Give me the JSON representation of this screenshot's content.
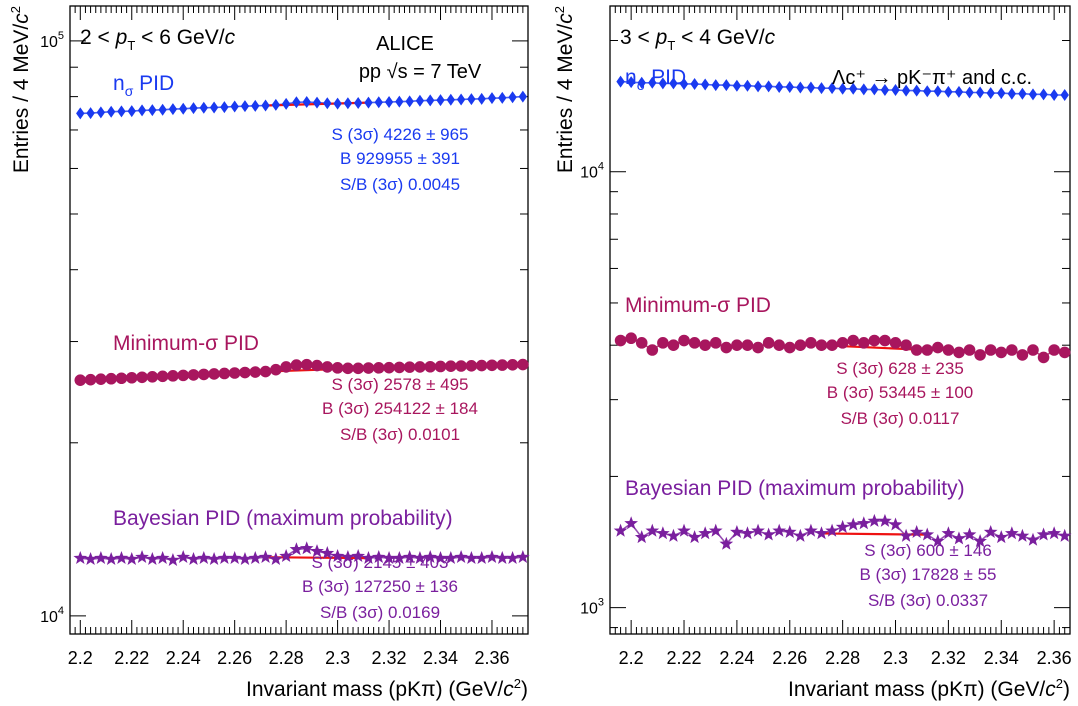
{
  "chart_data": [
    {
      "type": "scatter",
      "yscale": "log",
      "xlim": [
        2.196,
        2.374
      ],
      "ylim": [
        9300,
        115000
      ],
      "x_ticks": [
        "2.2",
        "2.22",
        "2.24",
        "2.26",
        "2.28",
        "2.3",
        "2.32",
        "2.34",
        "2.36"
      ],
      "x_tick_values": [
        2.2,
        2.22,
        2.24,
        2.26,
        2.28,
        2.3,
        2.32,
        2.34,
        2.36
      ],
      "y_labels": [
        {
          "value": 100000,
          "base": "10",
          "exp": "5"
        },
        {
          "value": 10000,
          "base": "10",
          "exp": "4"
        }
      ],
      "xlabel": "Invariant mass (pKπ) (GeV/c²)",
      "ylabel": "Entries / 4 MeV/c²",
      "header_left": "2 < pT < 6 GeV/c",
      "header_right": [
        "ALICE",
        "pp √s = 7 TeV"
      ],
      "grid": false,
      "x": [
        2.2,
        2.204,
        2.208,
        2.212,
        2.216,
        2.22,
        2.224,
        2.228,
        2.232,
        2.236,
        2.24,
        2.244,
        2.248,
        2.252,
        2.256,
        2.26,
        2.264,
        2.268,
        2.272,
        2.276,
        2.28,
        2.284,
        2.288,
        2.292,
        2.296,
        2.3,
        2.304,
        2.308,
        2.312,
        2.316,
        2.32,
        2.324,
        2.328,
        2.332,
        2.336,
        2.34,
        2.344,
        2.348,
        2.352,
        2.356,
        2.36,
        2.364,
        2.368,
        2.372
      ],
      "series": [
        {
          "name": "nσ PID",
          "marker": "diamond",
          "color": "#1a3af0",
          "values": [
            74800,
            74900,
            75100,
            75300,
            75400,
            75500,
            75700,
            75800,
            75900,
            76100,
            76200,
            76400,
            76500,
            76600,
            76700,
            76900,
            77000,
            77100,
            77200,
            77400,
            77700,
            78200,
            78300,
            78100,
            77900,
            77800,
            77900,
            78000,
            78100,
            78200,
            78300,
            78400,
            78500,
            78700,
            78800,
            78900,
            79000,
            79100,
            79200,
            79300,
            79500,
            79600,
            79800,
            80000
          ],
          "stats": [
            "S (3σ) 4226 ± 965",
            "B  929955 ± 391",
            "S/B (3σ) 0.0045"
          ]
        },
        {
          "name": "Minimum-σ PID",
          "marker": "circle",
          "color": "#a8165e",
          "values": [
            25700,
            25750,
            25800,
            25850,
            25900,
            25950,
            26000,
            26050,
            26100,
            26150,
            26200,
            26250,
            26300,
            26350,
            26400,
            26450,
            26500,
            26550,
            26600,
            26800,
            27100,
            27300,
            27350,
            27250,
            27100,
            27000,
            26950,
            26950,
            26980,
            27000,
            27020,
            27050,
            27080,
            27100,
            27120,
            27150,
            27180,
            27200,
            27220,
            27250,
            27280,
            27300,
            27330,
            27360
          ],
          "stats": [
            "S (3σ) 2578 ± 495",
            "B (3σ) 254122 ± 184",
            "S/B (3σ) 0.0101"
          ]
        },
        {
          "name": "Bayesian PID (maximum probability)",
          "marker": "star",
          "color": "#7a1f9e",
          "values": [
            12600,
            12550,
            12600,
            12550,
            12600,
            12550,
            12650,
            12550,
            12600,
            12500,
            12650,
            12550,
            12600,
            12550,
            12600,
            12600,
            12550,
            12600,
            12650,
            12550,
            12700,
            13050,
            13100,
            12950,
            12850,
            12700,
            12650,
            12700,
            12600,
            12650,
            12600,
            12600,
            12650,
            12600,
            12650,
            12600,
            12600,
            12650,
            12600,
            12600,
            12650,
            12600,
            12600,
            12650
          ],
          "stats": [
            "S (3σ) 2145 ± 403",
            "B (3σ) 127250 ± 136",
            "S/B (3σ) 0.0169"
          ]
        }
      ]
    },
    {
      "type": "scatter",
      "yscale": "log",
      "xlim": [
        2.192,
        2.366
      ],
      "ylim": [
        870,
        24000
      ],
      "x_ticks": [
        "2.2",
        "2.22",
        "2.24",
        "2.26",
        "2.28",
        "2.3",
        "2.32",
        "2.34",
        "2.36"
      ],
      "x_tick_values": [
        2.2,
        2.22,
        2.24,
        2.26,
        2.28,
        2.3,
        2.32,
        2.34,
        2.36
      ],
      "y_labels": [
        {
          "value": 10000,
          "base": "10",
          "exp": "4"
        },
        {
          "value": 1000,
          "base": "10",
          "exp": "3"
        }
      ],
      "xlabel": "Invariant mass (pKπ) (GeV/c²)",
      "ylabel": "Entries / 4 MeV/c²",
      "header_left": "3 < pT < 4 GeV/c",
      "header_right": [
        "Λc⁺ → pK⁻π⁺ and c.c."
      ],
      "grid": false,
      "x": [
        2.196,
        2.2,
        2.204,
        2.208,
        2.212,
        2.216,
        2.22,
        2.224,
        2.228,
        2.232,
        2.236,
        2.24,
        2.244,
        2.248,
        2.252,
        2.256,
        2.26,
        2.264,
        2.268,
        2.272,
        2.276,
        2.28,
        2.284,
        2.288,
        2.292,
        2.296,
        2.3,
        2.304,
        2.308,
        2.312,
        2.316,
        2.32,
        2.324,
        2.328,
        2.332,
        2.336,
        2.34,
        2.344,
        2.348,
        2.352,
        2.356,
        2.36,
        2.364
      ],
      "series": [
        {
          "name": "nσ PID",
          "marker": "diamond",
          "color": "#1a3af0",
          "values": [
            16100,
            16050,
            16000,
            16000,
            15950,
            15950,
            15900,
            15900,
            15850,
            15800,
            15800,
            15750,
            15750,
            15700,
            15700,
            15650,
            15650,
            15600,
            15600,
            15550,
            15550,
            15500,
            15500,
            15450,
            15450,
            15400,
            15400,
            15350,
            15350,
            15300,
            15300,
            15250,
            15250,
            15200,
            15200,
            15150,
            15150,
            15100,
            15100,
            15050,
            15050,
            15000,
            15000
          ],
          "stats": []
        },
        {
          "name": "Minimum-σ PID",
          "marker": "circle",
          "color": "#a8165e",
          "values": [
            4100,
            4150,
            4050,
            3900,
            4050,
            4000,
            4100,
            4050,
            4000,
            4050,
            3950,
            4000,
            4000,
            3950,
            4050,
            4000,
            3950,
            4000,
            4050,
            4000,
            4000,
            4050,
            4100,
            4050,
            4100,
            4100,
            4050,
            4000,
            3900,
            3900,
            3950,
            3900,
            3850,
            3900,
            3800,
            3900,
            3850,
            3900,
            3800,
            3900,
            3750,
            3900,
            3850
          ],
          "stats": [
            "S (3σ) 628 ± 235",
            "B (3σ) 53445 ± 100",
            "S/B (3σ) 0.0117"
          ]
        },
        {
          "name": "Bayesian PID (maximum probability)",
          "marker": "star",
          "color": "#7a1f9e",
          "values": [
            1500,
            1560,
            1450,
            1500,
            1480,
            1460,
            1500,
            1450,
            1480,
            1500,
            1400,
            1490,
            1480,
            1500,
            1470,
            1500,
            1490,
            1460,
            1500,
            1480,
            1500,
            1530,
            1550,
            1560,
            1580,
            1580,
            1550,
            1460,
            1490,
            1470,
            1420,
            1480,
            1440,
            1470,
            1420,
            1490,
            1450,
            1480,
            1460,
            1430,
            1470,
            1480,
            1460
          ],
          "stats": [
            "S (3σ) 600 ± 146",
            "B (3σ) 17828 ± 55",
            "S/B (3σ) 0.0337"
          ]
        }
      ]
    }
  ]
}
